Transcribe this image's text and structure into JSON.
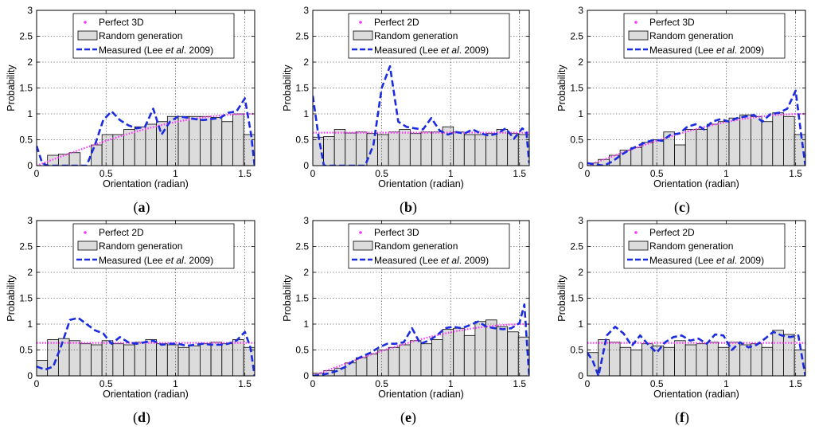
{
  "figure": {
    "panels": [
      "(a)",
      "(b)",
      "(c)",
      "(d)",
      "(e)",
      "(f)"
    ]
  },
  "legend": {
    "random_label": "Random generation",
    "measured_label": "Measured (Lee ",
    "measured_italic": "et al",
    "measured_suffix": ". 2009)"
  },
  "colors": {
    "perfect": "#ff33ff",
    "bars_fill": "#dcdcdc",
    "bars_stroke": "#000000",
    "measured": "#1a2be0",
    "grid": "#000000"
  },
  "chart_data": [
    {
      "type": "bar",
      "panel": "a",
      "panel_label": "(a)",
      "xlabel": "Orientation (radian)",
      "ylabel": "Probability",
      "xlim": [
        0,
        1.5708
      ],
      "ylim": [
        0,
        3
      ],
      "xticks": [
        "0",
        "0.5",
        "1",
        "1.5"
      ],
      "yticks": [
        "0",
        "0.5",
        "1",
        "1.5",
        "2",
        "2.5",
        "3"
      ],
      "perfect_label": "Perfect 3D",
      "perfect_kind": "3D",
      "bin_width": 0.0785,
      "bars": [
        0,
        0.2,
        0.22,
        0.25,
        0,
        0.4,
        0.6,
        0.6,
        0.7,
        0.75,
        0.8,
        0.85,
        0.95,
        0.95,
        0.95,
        0.95,
        0.93,
        0.85,
        1.0,
        0.6
      ],
      "measured": {
        "x": [
          0,
          0.04,
          0.08,
          0.12,
          0.18,
          0.24,
          0.3,
          0.36,
          0.42,
          0.48,
          0.54,
          0.6,
          0.66,
          0.72,
          0.78,
          0.84,
          0.9,
          0.96,
          1.02,
          1.08,
          1.14,
          1.2,
          1.26,
          1.32,
          1.38,
          1.44,
          1.5,
          1.545,
          1.57
        ],
        "y": [
          0.38,
          0.05,
          0,
          0,
          0,
          0,
          0,
          0,
          0.4,
          0.88,
          1.05,
          0.88,
          0.78,
          0.72,
          0.75,
          1.1,
          0.6,
          0.85,
          0.95,
          0.93,
          0.9,
          0.88,
          0.9,
          0.92,
          1.02,
          1.05,
          1.3,
          0.6,
          0
        ]
      }
    },
    {
      "type": "bar",
      "panel": "b",
      "panel_label": "(b)",
      "xlabel": "Orientation (radian)",
      "ylabel": "Probability",
      "xlim": [
        0,
        1.5708
      ],
      "ylim": [
        0,
        3
      ],
      "xticks": [
        "0",
        "0.5",
        "1",
        "1.5"
      ],
      "yticks": [
        "0",
        "0.5",
        "1",
        "1.5",
        "2",
        "2.5",
        "3"
      ],
      "perfect_label": "Perfect 2D",
      "perfect_kind": "2D",
      "bin_width": 0.0785,
      "bars": [
        0.55,
        0.56,
        0.7,
        0.63,
        0.65,
        0.62,
        0.6,
        0.65,
        0.7,
        0.62,
        0.65,
        0.65,
        0.75,
        0.65,
        0.6,
        0.6,
        0.62,
        0.7,
        0.62,
        0.6
      ],
      "measured": {
        "x": [
          0,
          0.04,
          0.08,
          0.15,
          0.22,
          0.3,
          0.38,
          0.44,
          0.5,
          0.56,
          0.62,
          0.68,
          0.74,
          0.8,
          0.86,
          0.92,
          0.98,
          1.04,
          1.1,
          1.16,
          1.22,
          1.28,
          1.34,
          1.4,
          1.46,
          1.52,
          1.55,
          1.57
        ],
        "y": [
          1.35,
          0.6,
          0,
          0,
          0,
          0,
          0,
          0.4,
          1.5,
          1.92,
          0.85,
          0.75,
          0.72,
          0.7,
          0.92,
          0.68,
          0.6,
          0.65,
          0.62,
          0.7,
          0.62,
          0.58,
          0.62,
          0.72,
          0.52,
          0.72,
          0.65,
          0.05
        ]
      }
    },
    {
      "type": "bar",
      "panel": "c",
      "panel_label": "(c)",
      "xlabel": "Orientation (radian)",
      "ylabel": "Probability",
      "xlim": [
        0,
        1.5708
      ],
      "ylim": [
        0,
        3
      ],
      "xticks": [
        "0",
        "0.5",
        "1",
        "1.5"
      ],
      "yticks": [
        "0",
        "0.5",
        "1",
        "1.5",
        "2",
        "2.5",
        "3"
      ],
      "perfect_label": "Perfect 3D",
      "perfect_kind": "3D",
      "bin_width": 0.0785,
      "bars": [
        0.05,
        0.12,
        0.2,
        0.3,
        0.35,
        0.45,
        0.5,
        0.65,
        0.4,
        0.7,
        0.7,
        0.8,
        0.85,
        0.92,
        0.98,
        0.95,
        0.85,
        1.02,
        0.95,
        0.6
      ],
      "measured": {
        "x": [
          0,
          0.06,
          0.12,
          0.18,
          0.24,
          0.3,
          0.36,
          0.42,
          0.48,
          0.54,
          0.6,
          0.66,
          0.72,
          0.78,
          0.84,
          0.9,
          0.96,
          1.02,
          1.08,
          1.14,
          1.2,
          1.26,
          1.32,
          1.38,
          1.44,
          1.5,
          1.54,
          1.57
        ],
        "y": [
          0.05,
          0.02,
          0.0,
          0.08,
          0.2,
          0.3,
          0.38,
          0.45,
          0.5,
          0.48,
          0.6,
          0.62,
          0.75,
          0.8,
          0.7,
          0.85,
          0.9,
          0.85,
          0.92,
          0.95,
          0.98,
          0.85,
          1.0,
          1.02,
          1.1,
          1.45,
          0.6,
          0
        ]
      }
    },
    {
      "type": "bar",
      "panel": "d",
      "panel_label": "(d)",
      "xlabel": "Orientation (radian)",
      "ylabel": "Probability",
      "xlim": [
        0,
        1.5708
      ],
      "ylim": [
        0,
        3
      ],
      "xticks": [
        "0",
        "0.5",
        "1",
        "1.5"
      ],
      "yticks": [
        "0",
        "0.5",
        "1",
        "1.5",
        "2",
        "2.5",
        "3"
      ],
      "perfect_label": "Perfect 2D",
      "perfect_kind": "2D",
      "bin_width": 0.0785,
      "bars": [
        0.3,
        0.7,
        0.72,
        0.68,
        0.62,
        0.6,
        0.68,
        0.62,
        0.6,
        0.65,
        0.7,
        0.62,
        0.6,
        0.55,
        0.58,
        0.62,
        0.65,
        0.62,
        0.7,
        0.55
      ],
      "measured": {
        "x": [
          0,
          0.06,
          0.12,
          0.18,
          0.24,
          0.3,
          0.36,
          0.42,
          0.48,
          0.54,
          0.6,
          0.66,
          0.72,
          0.78,
          0.84,
          0.9,
          0.96,
          1.02,
          1.08,
          1.14,
          1.2,
          1.26,
          1.32,
          1.38,
          1.44,
          1.5,
          1.54,
          1.57
        ],
        "y": [
          0.18,
          0.12,
          0.18,
          0.6,
          1.08,
          1.12,
          1.0,
          0.88,
          0.82,
          0.62,
          0.75,
          0.65,
          0.62,
          0.65,
          0.68,
          0.6,
          0.62,
          0.62,
          0.58,
          0.6,
          0.62,
          0.6,
          0.6,
          0.62,
          0.68,
          0.85,
          0.55,
          0
        ]
      }
    },
    {
      "type": "bar",
      "panel": "e",
      "panel_label": "(e)",
      "xlabel": "Orientation (radian)",
      "ylabel": "Probability",
      "xlim": [
        0,
        1.5708
      ],
      "ylim": [
        0,
        3
      ],
      "xticks": [
        "0",
        "0.5",
        "1",
        "1.5"
      ],
      "yticks": [
        "0",
        "0.5",
        "1",
        "1.5",
        "2",
        "2.5",
        "3"
      ],
      "perfect_label": "Perfect 3D",
      "perfect_kind": "3D",
      "bin_width": 0.0785,
      "bars": [
        0.05,
        0.1,
        0.15,
        0.25,
        0.35,
        0.42,
        0.5,
        0.55,
        0.6,
        0.68,
        0.62,
        0.7,
        0.9,
        0.92,
        0.78,
        1.05,
        1.08,
        0.95,
        0.85,
        0.75
      ],
      "measured": {
        "x": [
          0,
          0.06,
          0.12,
          0.18,
          0.24,
          0.3,
          0.36,
          0.42,
          0.48,
          0.54,
          0.6,
          0.66,
          0.72,
          0.78,
          0.84,
          0.9,
          0.96,
          1.02,
          1.08,
          1.14,
          1.2,
          1.26,
          1.32,
          1.38,
          1.44,
          1.5,
          1.535,
          1.57
        ],
        "y": [
          0.0,
          0.02,
          0.05,
          0.1,
          0.18,
          0.3,
          0.38,
          0.45,
          0.55,
          0.62,
          0.62,
          0.65,
          0.92,
          0.62,
          0.68,
          0.78,
          0.92,
          0.95,
          0.92,
          0.98,
          1.05,
          0.95,
          0.92,
          0.9,
          0.92,
          1.02,
          1.38,
          0
        ]
      }
    },
    {
      "type": "bar",
      "panel": "f",
      "panel_label": "(f)",
      "xlabel": "Orientation (radian)",
      "ylabel": "Probability",
      "xlim": [
        0,
        1.5708
      ],
      "ylim": [
        0,
        3
      ],
      "xticks": [
        "0",
        "0.5",
        "1",
        "1.5"
      ],
      "yticks": [
        "0",
        "0.5",
        "1",
        "1.5",
        "2",
        "2.5",
        "3"
      ],
      "perfect_label": "Perfect 2D",
      "perfect_kind": "2D",
      "bin_width": 0.0785,
      "bars": [
        0.45,
        0.7,
        0.65,
        0.55,
        0.5,
        0.62,
        0.58,
        0.55,
        0.68,
        0.6,
        0.62,
        0.65,
        0.55,
        0.65,
        0.6,
        0.62,
        0.55,
        0.88,
        0.8,
        0.5
      ],
      "measured": {
        "x": [
          0,
          0.04,
          0.08,
          0.14,
          0.2,
          0.26,
          0.32,
          0.38,
          0.44,
          0.5,
          0.56,
          0.62,
          0.68,
          0.74,
          0.8,
          0.86,
          0.92,
          0.98,
          1.04,
          1.1,
          1.16,
          1.22,
          1.28,
          1.34,
          1.4,
          1.46,
          1.52,
          1.55,
          1.57
        ],
        "y": [
          0.45,
          0.28,
          0.0,
          0.78,
          0.95,
          0.82,
          0.58,
          0.78,
          0.6,
          0.45,
          0.65,
          0.75,
          0.78,
          0.68,
          0.72,
          0.62,
          0.8,
          0.78,
          0.5,
          0.65,
          0.55,
          0.6,
          0.72,
          0.85,
          0.78,
          0.75,
          0.78,
          0.3,
          0
        ]
      }
    }
  ]
}
